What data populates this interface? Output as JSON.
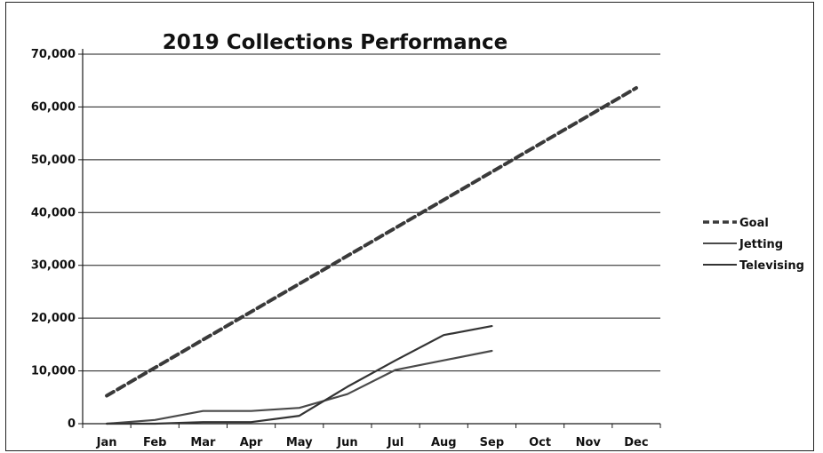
{
  "chart_data": {
    "type": "line",
    "title": "2019 Collections Performance",
    "xlabel": "",
    "ylabel": "",
    "categories": [
      "Jan",
      "Feb",
      "Mar",
      "Apr",
      "May",
      "Jun",
      "Jul",
      "Aug",
      "Sep",
      "Oct",
      "Nov",
      "Dec"
    ],
    "ylim": [
      0,
      70000
    ],
    "yticks": [
      0,
      10000,
      20000,
      30000,
      40000,
      50000,
      60000,
      70000
    ],
    "ytick_labels": [
      "0",
      "10,000",
      "20,000",
      "30,000",
      "40,000",
      "50,000",
      "60,000",
      "70,000"
    ],
    "grid": true,
    "legend_position": "right",
    "series": [
      {
        "name": "Goal",
        "style": "dashed",
        "color": "#3a3a3a",
        "values": [
          5300,
          10600,
          15900,
          21200,
          26500,
          31800,
          37100,
          42400,
          47700,
          53000,
          58300,
          63600
        ]
      },
      {
        "name": "Jetting",
        "style": "solid",
        "color": "#4a4a4a",
        "values": [
          0,
          700,
          2400,
          2400,
          3000,
          5600,
          10200,
          12000,
          13800,
          null,
          null,
          null
        ]
      },
      {
        "name": "Televising",
        "style": "solid",
        "color": "#333333",
        "values": [
          0,
          0,
          300,
          300,
          1500,
          7000,
          12000,
          16800,
          18500,
          null,
          null,
          null
        ]
      }
    ]
  }
}
